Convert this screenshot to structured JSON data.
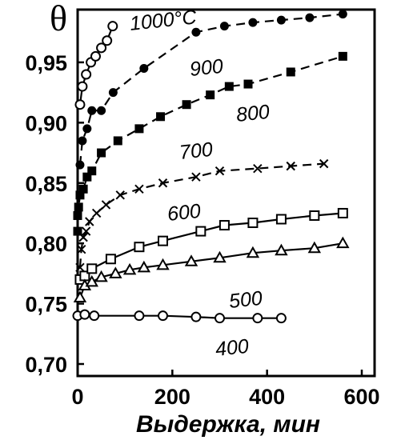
{
  "chart_data": {
    "type": "line",
    "title": "",
    "ylabel": "θ",
    "xlabel": "Выдержка, мин",
    "xlim": [
      0,
      600
    ],
    "ylim": [
      0.7,
      1.0
    ],
    "xticks": [
      "0",
      "200",
      "400",
      "600"
    ],
    "yticks": [
      "0,70",
      "0,75",
      "0,80",
      "0,85",
      "0,90",
      "0,95"
    ],
    "grid": false,
    "series": [
      {
        "name": "1000°C",
        "marker": "circle-open",
        "line": "solid",
        "x": [
          5,
          10,
          18,
          28,
          38,
          50,
          62,
          74
        ],
        "y": [
          0.915,
          0.93,
          0.94,
          0.95,
          0.955,
          0.962,
          0.968,
          0.98
        ]
      },
      {
        "name": "900",
        "marker": "circle-filled",
        "line": "dashed",
        "x": [
          5,
          10,
          20,
          30,
          50,
          75,
          140,
          250,
          310,
          370,
          430,
          490,
          560
        ],
        "y": [
          0.865,
          0.885,
          0.895,
          0.91,
          0.91,
          0.925,
          0.945,
          0.975,
          0.98,
          0.983,
          0.985,
          0.987,
          0.99
        ]
      },
      {
        "name": "800",
        "marker": "square-filled",
        "line": "dashed",
        "x": [
          0,
          0,
          2,
          5,
          12,
          20,
          30,
          50,
          85,
          130,
          175,
          230,
          280,
          320,
          360,
          450,
          560
        ],
        "y": [
          0.81,
          0.823,
          0.83,
          0.84,
          0.845,
          0.855,
          0.86,
          0.875,
          0.885,
          0.895,
          0.905,
          0.915,
          0.923,
          0.93,
          0.932,
          0.942,
          0.955
        ]
      },
      {
        "name": "700",
        "marker": "cross",
        "line": "dashed",
        "x": [
          5,
          8,
          12,
          18,
          25,
          40,
          60,
          90,
          130,
          180,
          250,
          300,
          380,
          450,
          520
        ],
        "y": [
          0.78,
          0.795,
          0.805,
          0.81,
          0.818,
          0.825,
          0.832,
          0.84,
          0.845,
          0.85,
          0.855,
          0.86,
          0.862,
          0.864,
          0.866
        ]
      },
      {
        "name": "600",
        "marker": "square-open",
        "line": "solid",
        "x": [
          5,
          15,
          30,
          70,
          130,
          180,
          260,
          310,
          370,
          430,
          500,
          560
        ],
        "y": [
          0.77,
          0.773,
          0.779,
          0.787,
          0.797,
          0.802,
          0.81,
          0.815,
          0.817,
          0.82,
          0.823,
          0.825
        ]
      },
      {
        "name": "500",
        "marker": "triangle-open",
        "line": "solid",
        "x": [
          5,
          15,
          30,
          50,
          80,
          110,
          140,
          180,
          240,
          300,
          370,
          430,
          500,
          560
        ],
        "y": [
          0.755,
          0.765,
          0.768,
          0.772,
          0.775,
          0.778,
          0.78,
          0.782,
          0.785,
          0.788,
          0.792,
          0.794,
          0.796,
          0.8
        ]
      },
      {
        "name": "400",
        "marker": "circle-open",
        "line": "solid",
        "x": [
          0,
          15,
          35,
          130,
          180,
          250,
          300,
          380,
          430
        ],
        "y": [
          0.74,
          0.741,
          0.74,
          0.74,
          0.74,
          0.739,
          0.738,
          0.738,
          0.738
        ]
      }
    ]
  }
}
